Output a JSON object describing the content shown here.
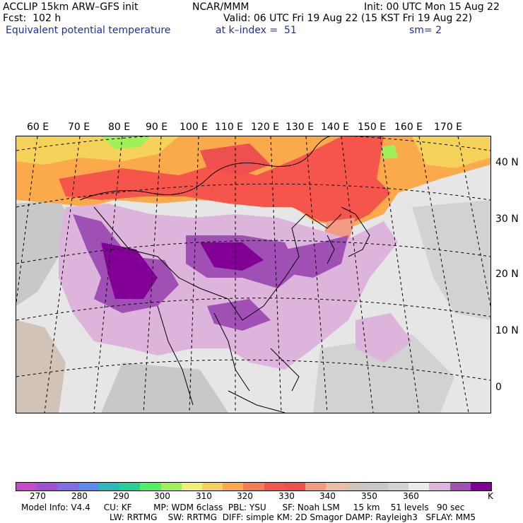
{
  "header": {
    "line1_left": "ACCLIP 15km ARW–GFS init",
    "line1_center": "NCAR/MMM",
    "line1_right": "Init: 00 UTC Mon 15 Aug 22",
    "line2_left": "Fcst:  102 h",
    "line2_right": "Valid: 06 UTC Fri 19 Aug 22 (15 KST Fri 19 Aug 22)",
    "line3_left": "Equivalent potential temperature",
    "line3_center": "at k–index =  51",
    "line3_right": "sm= 2"
  },
  "map": {
    "lon_labels": [
      "60 E",
      "70 E",
      "80 E",
      "90 E",
      "100 E",
      "110 E",
      "120 E",
      "130 E",
      "140 E",
      "150 E",
      "160 E",
      "170 E"
    ],
    "lat_labels": [
      "40 N",
      "30 N",
      "20 N",
      "10 N",
      "0"
    ]
  },
  "colorbar": {
    "colors": [
      "#c848c8",
      "#a050d2",
      "#7d6ee6",
      "#5a8cf0",
      "#28b9b9",
      "#23d296",
      "#50f064",
      "#a0f05a",
      "#f0f078",
      "#f5d25a",
      "#faaa4b",
      "#f57d50",
      "#f5554b",
      "#ee5050",
      "#f09b82",
      "#ebbea5",
      "#d2c3b9",
      "#c8c8c8",
      "#d2d2d2",
      "#ebebeb",
      "#dcb4dc",
      "#a050b4",
      "#820096"
    ],
    "ticks": [
      "270",
      "280",
      "290",
      "300",
      "310",
      "320",
      "330",
      "340",
      "350",
      "360",
      "K"
    ]
  },
  "footer": {
    "line1": "Model Info: V4.4     CU: KF        MP: WDM 6class  PBL: YSU      SF: Noah LSM     15 km    51 levels   90 sec",
    "line2": "LW: RRTMG    SW: RRTMG  DIFF: simple KM: 2D Smagor DAMP: Rayleigh3   SFLAY: MM5"
  },
  "field_colors": {
    "background": "#e6e6e6",
    "grey_dark": "#c8c8c8",
    "tan": "#d2c3b9",
    "light_purple": "#dcb4dc",
    "mid_purple": "#a050b4",
    "dark_purple": "#820096",
    "red": "#f5554b",
    "orange": "#faaa4b",
    "yellow": "#f5d25a",
    "light_green": "#a0f05a",
    "pink": "#f09b82"
  }
}
